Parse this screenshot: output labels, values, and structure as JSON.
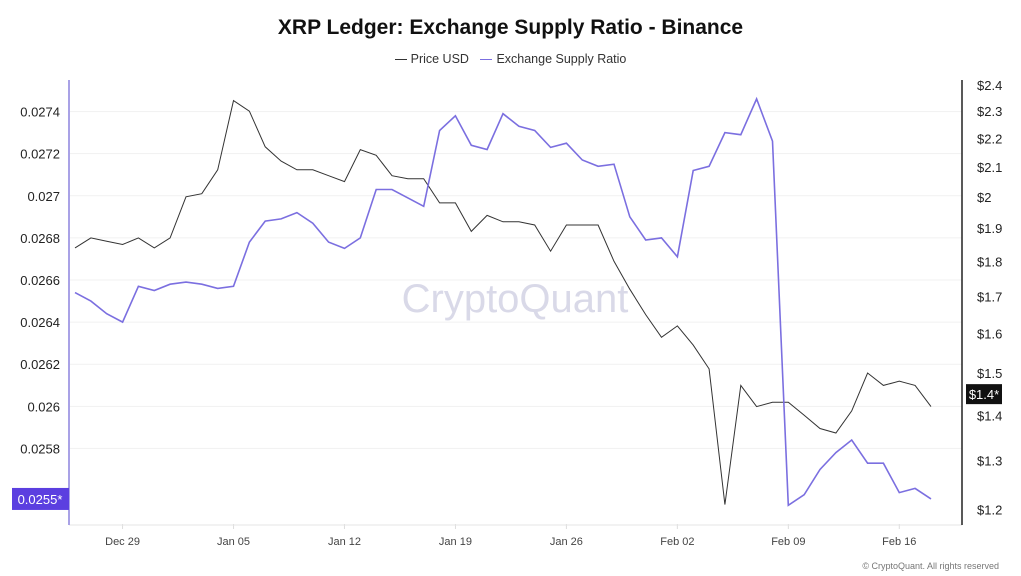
{
  "chart_data": {
    "type": "line",
    "title": "XRP Ledger: Exchange Supply Ratio - Binance",
    "watermark": "CryptoQuant",
    "copyright": "© CryptoQuant. All rights reserved",
    "legend_placement": "top-center",
    "grid": true,
    "x": [
      "Dec 26",
      "Dec 27",
      "Dec 28",
      "Dec 29",
      "Dec 30",
      "Dec 31",
      "Jan 01",
      "Jan 02",
      "Jan 03",
      "Jan 04",
      "Jan 05",
      "Jan 06",
      "Jan 07",
      "Jan 08",
      "Jan 09",
      "Jan 10",
      "Jan 11",
      "Jan 12",
      "Jan 13",
      "Jan 14",
      "Jan 15",
      "Jan 16",
      "Jan 17",
      "Jan 18",
      "Jan 19",
      "Jan 20",
      "Jan 21",
      "Jan 22",
      "Jan 23",
      "Jan 24",
      "Jan 25",
      "Jan 26",
      "Jan 27",
      "Jan 28",
      "Jan 29",
      "Jan 30",
      "Jan 31",
      "Feb 01",
      "Feb 02",
      "Feb 03",
      "Feb 04",
      "Feb 05",
      "Feb 06",
      "Feb 07",
      "Feb 08",
      "Feb 09",
      "Feb 10",
      "Feb 11",
      "Feb 12",
      "Feb 13",
      "Feb 14",
      "Feb 15",
      "Feb 16",
      "Feb 17",
      "Feb 18"
    ],
    "x_ticks": [
      "Dec 29",
      "Jan 05",
      "Jan 12",
      "Jan 19",
      "Jan 26",
      "Feb 02",
      "Feb 09",
      "Feb 16"
    ],
    "left_axis": {
      "ticks": [
        "0.0274",
        "0.0272",
        "0.027",
        "0.0268",
        "0.0266",
        "0.0264",
        "0.0262",
        "0.026",
        "0.0258"
      ],
      "tick_values": [
        0.0274,
        0.0272,
        0.027,
        0.0268,
        0.0266,
        0.0264,
        0.0262,
        0.026,
        0.0258
      ],
      "ylim": [
        0.02546,
        0.02755
      ],
      "current_label": "0.0255*",
      "current_color": "#5b3fe0"
    },
    "right_axis": {
      "scale": "log",
      "ticks": [
        "$2.4",
        "$2.3",
        "$2.2",
        "$2.1",
        "$2",
        "$1.9",
        "$1.8",
        "$1.7",
        "$1.6",
        "$1.5",
        "$1.4",
        "$1.3",
        "$1.2"
      ],
      "tick_values": [
        2.4,
        2.3,
        2.2,
        2.1,
        2.0,
        1.9,
        1.8,
        1.7,
        1.6,
        1.5,
        1.4,
        1.3,
        1.2
      ],
      "ylim": [
        1.18,
        2.42
      ],
      "current_label": "$1.4*",
      "current_color": "#111111"
    },
    "series": [
      {
        "name": "Price USD",
        "axis": "right",
        "color": "#333333",
        "values": [
          1.84,
          1.87,
          1.86,
          1.85,
          1.87,
          1.84,
          1.87,
          2.0,
          2.01,
          2.09,
          2.34,
          2.3,
          2.17,
          2.12,
          2.09,
          2.09,
          2.07,
          2.05,
          2.16,
          2.14,
          2.07,
          2.06,
          2.06,
          1.98,
          1.98,
          1.89,
          1.94,
          1.92,
          1.92,
          1.91,
          1.83,
          1.91,
          1.91,
          1.91,
          1.8,
          1.72,
          1.65,
          1.59,
          1.62,
          1.57,
          1.51,
          1.21,
          1.47,
          1.42,
          1.43,
          1.43,
          1.4,
          1.37,
          1.36,
          1.41,
          1.5,
          1.47,
          1.48,
          1.47,
          1.42
        ]
      },
      {
        "name": "Exchange Supply Ratio",
        "axis": "left",
        "color": "#7b6fe0",
        "values": [
          0.02654,
          0.0265,
          0.02644,
          0.0264,
          0.02657,
          0.02655,
          0.02658,
          0.02659,
          0.02658,
          0.02656,
          0.02657,
          0.02678,
          0.02688,
          0.02689,
          0.02692,
          0.02687,
          0.02678,
          0.02675,
          0.0268,
          0.02703,
          0.02703,
          0.02699,
          0.02695,
          0.02731,
          0.02738,
          0.02724,
          0.02722,
          0.02739,
          0.02733,
          0.02731,
          0.02723,
          0.02725,
          0.02717,
          0.02714,
          0.02715,
          0.0269,
          0.02679,
          0.0268,
          0.02671,
          0.02712,
          0.02714,
          0.0273,
          0.02729,
          0.02746,
          0.02726,
          0.02553,
          0.02558,
          0.0257,
          0.02578,
          0.02584,
          0.02573,
          0.02573,
          0.02559,
          0.02561,
          0.02556
        ]
      }
    ]
  }
}
